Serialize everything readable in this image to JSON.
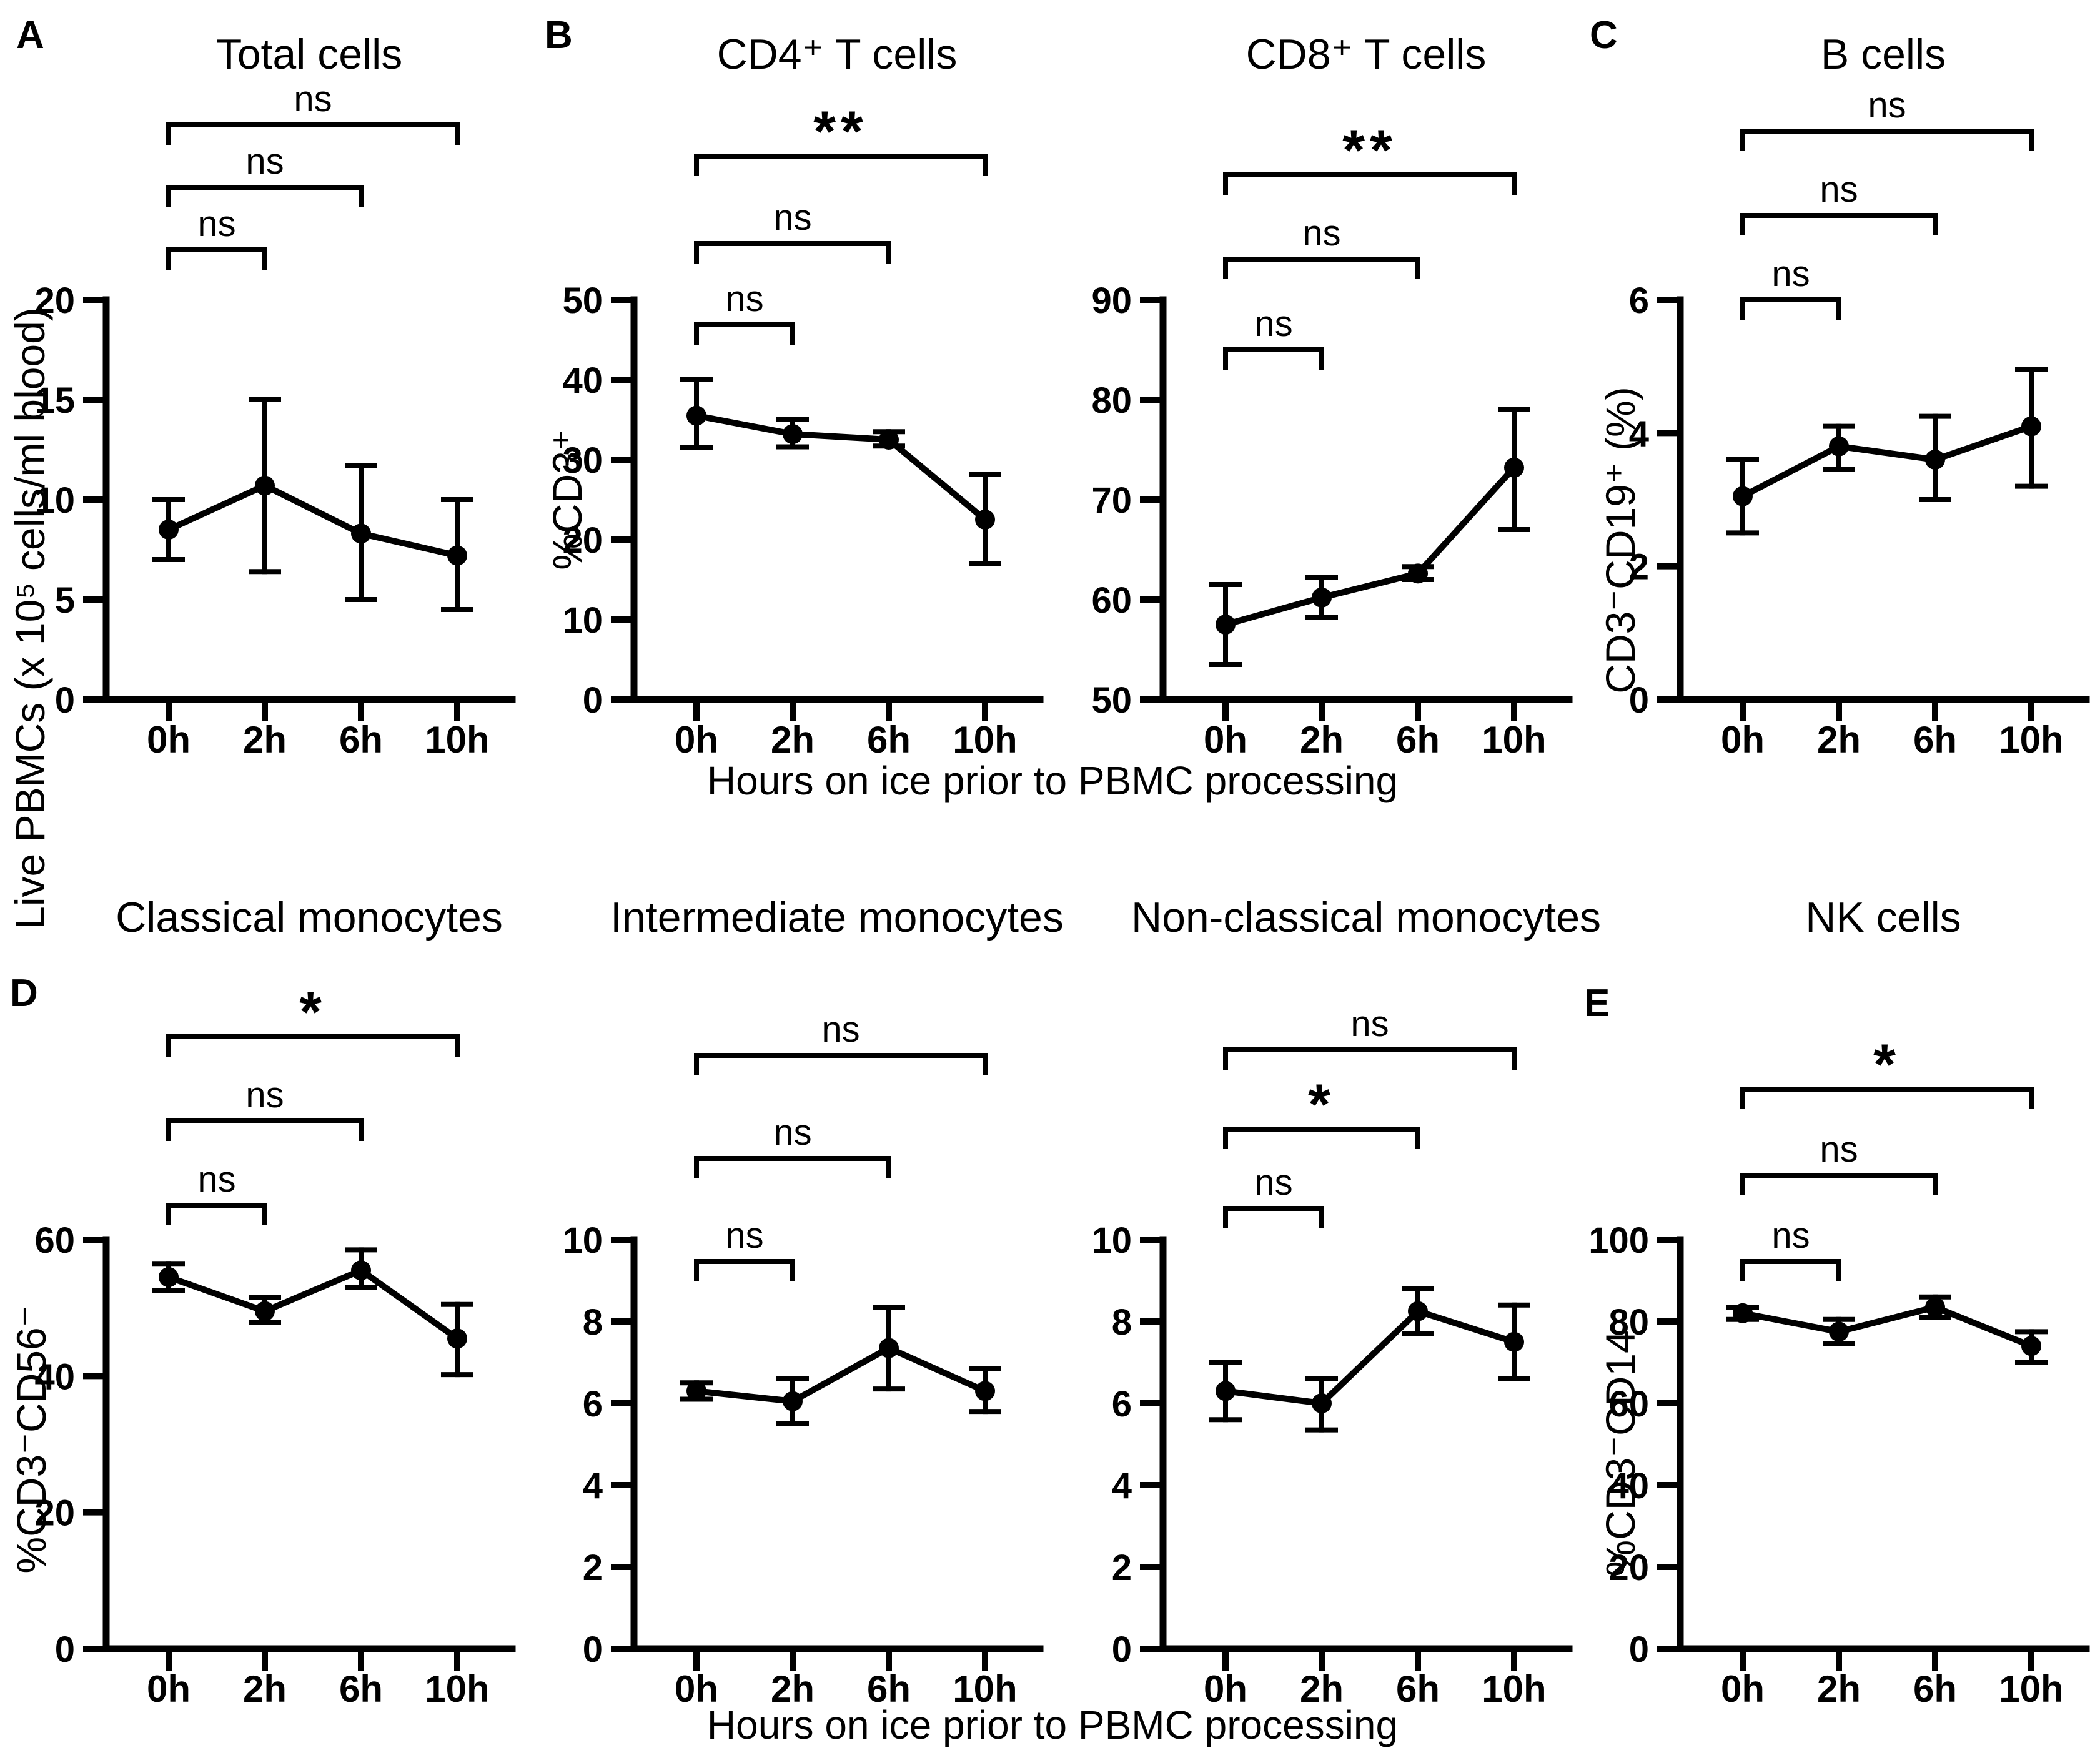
{
  "figure": {
    "panel_letters": [
      "A",
      "B",
      "C",
      "D",
      "E"
    ],
    "xaxis_label_row1": "Hours on ice prior to PBMC processing",
    "xaxis_label_row2": "Hours on ice prior to PBMC processing",
    "colors": {
      "ink": "#000000",
      "background": "#ffffff"
    }
  },
  "chart_data": [
    {
      "type": "line",
      "panel_letter": "A",
      "title": "Total cells",
      "ylabel": "Live PBMCs (x 10⁵ cells/ml blood)",
      "categories": [
        "0h",
        "2h",
        "6h",
        "10h"
      ],
      "values": [
        8.5,
        10.7,
        8.3,
        7.2
      ],
      "err_low": [
        7.0,
        6.4,
        5.0,
        4.5
      ],
      "err_high": [
        10.0,
        15.0,
        11.7,
        10.0
      ],
      "ylim": [
        0,
        20
      ],
      "yticks": [
        0,
        5,
        10,
        15,
        20
      ],
      "marker": "filled-circle",
      "significance": [
        {
          "comparison": "0h vs 2h",
          "label": "ns"
        },
        {
          "comparison": "0h vs 6h",
          "label": "ns"
        },
        {
          "comparison": "0h vs 10h",
          "label": "ns"
        }
      ]
    },
    {
      "type": "line",
      "panel_letter": "B",
      "title": "CD4⁺ T cells",
      "ylabel": "%CD3⁺",
      "categories": [
        "0h",
        "2h",
        "6h",
        "10h"
      ],
      "values": [
        35.5,
        33.2,
        32.5,
        22.5
      ],
      "err_low": [
        31.5,
        31.6,
        31.7,
        17.0
      ],
      "err_high": [
        40.0,
        35.0,
        33.5,
        28.2
      ],
      "ylim": [
        0,
        50
      ],
      "yticks": [
        0,
        10,
        20,
        30,
        40,
        50
      ],
      "marker": "filled-circle",
      "significance": [
        {
          "comparison": "0h vs 2h",
          "label": "ns"
        },
        {
          "comparison": "0h vs 6h",
          "label": "ns"
        },
        {
          "comparison": "0h vs 10h",
          "label": "**"
        }
      ]
    },
    {
      "type": "line",
      "panel_letter": "",
      "title": "CD8⁺ T cells",
      "ylabel": "",
      "categories": [
        "0h",
        "2h",
        "6h",
        "10h"
      ],
      "values": [
        57.5,
        60.2,
        62.6,
        73.2
      ],
      "err_low": [
        53.5,
        58.2,
        62.0,
        67.0
      ],
      "err_high": [
        61.5,
        62.2,
        63.3,
        79.0
      ],
      "ylim": [
        50,
        90
      ],
      "yticks": [
        50,
        60,
        70,
        80,
        90
      ],
      "marker": "filled-circle",
      "significance": [
        {
          "comparison": "0h vs 2h",
          "label": "ns"
        },
        {
          "comparison": "0h vs 6h",
          "label": "ns"
        },
        {
          "comparison": "0h vs 10h",
          "label": "**"
        }
      ]
    },
    {
      "type": "line",
      "panel_letter": "C",
      "title": "B cells",
      "ylabel": "CD3⁻CD19⁺ (%)",
      "categories": [
        "0h",
        "2h",
        "6h",
        "10h"
      ],
      "values": [
        3.05,
        3.8,
        3.6,
        4.1
      ],
      "err_low": [
        2.5,
        3.45,
        3.0,
        3.2
      ],
      "err_high": [
        3.6,
        4.1,
        4.25,
        4.95
      ],
      "ylim": [
        0,
        6
      ],
      "yticks": [
        0,
        2,
        4,
        6
      ],
      "marker": "filled-circle",
      "significance": [
        {
          "comparison": "0h vs 2h",
          "label": "ns"
        },
        {
          "comparison": "0h vs 6h",
          "label": "ns"
        },
        {
          "comparison": "0h vs 10h",
          "label": "ns"
        }
      ]
    },
    {
      "type": "line",
      "panel_letter": "D",
      "title": "Classical monocytes",
      "ylabel": "%CD3⁻CD56⁻",
      "categories": [
        "0h",
        "2h",
        "6h",
        "10h"
      ],
      "values": [
        54.5,
        49.5,
        55.5,
        45.5
      ],
      "err_low": [
        52.5,
        47.9,
        53.0,
        40.2
      ],
      "err_high": [
        56.5,
        51.5,
        58.5,
        50.5
      ],
      "ylim": [
        0,
        60
      ],
      "yticks": [
        0,
        20,
        40,
        60
      ],
      "marker": "filled-circle",
      "significance": [
        {
          "comparison": "0h vs 2h",
          "label": "ns"
        },
        {
          "comparison": "0h vs 6h",
          "label": "ns"
        },
        {
          "comparison": "0h vs 10h",
          "label": "*"
        }
      ]
    },
    {
      "type": "line",
      "panel_letter": "",
      "title": "Intermediate monocytes",
      "ylabel": "",
      "categories": [
        "0h",
        "2h",
        "6h",
        "10h"
      ],
      "values": [
        6.3,
        6.05,
        7.35,
        6.3
      ],
      "err_low": [
        6.1,
        5.5,
        6.35,
        5.8
      ],
      "err_high": [
        6.5,
        6.6,
        8.35,
        6.85
      ],
      "ylim": [
        0,
        10
      ],
      "yticks": [
        0,
        2,
        4,
        6,
        8,
        10
      ],
      "marker": "filled-circle",
      "significance": [
        {
          "comparison": "0h vs 2h",
          "label": "ns"
        },
        {
          "comparison": "0h vs 6h",
          "label": "ns"
        },
        {
          "comparison": "0h vs 10h",
          "label": "ns"
        }
      ]
    },
    {
      "type": "line",
      "panel_letter": "",
      "title": "Non-classical monocytes",
      "ylabel": "",
      "categories": [
        "0h",
        "2h",
        "6h",
        "10h"
      ],
      "values": [
        6.3,
        6.0,
        8.25,
        7.5
      ],
      "err_low": [
        5.6,
        5.35,
        7.7,
        6.6
      ],
      "err_high": [
        7.0,
        6.6,
        8.8,
        8.4
      ],
      "ylim": [
        0,
        10
      ],
      "yticks": [
        0,
        2,
        4,
        6,
        8,
        10
      ],
      "marker": "filled-circle",
      "significance": [
        {
          "comparison": "0h vs 2h",
          "label": "ns"
        },
        {
          "comparison": "0h vs 6h",
          "label": "*"
        },
        {
          "comparison": "0h vs 10h",
          "label": "ns"
        }
      ]
    },
    {
      "type": "line",
      "panel_letter": "E",
      "title": "NK cells",
      "ylabel": "%CD3⁻CD14⁻",
      "categories": [
        "0h",
        "2h",
        "6h",
        "10h"
      ],
      "values": [
        82.0,
        77.5,
        83.5,
        74.0
      ],
      "err_low": [
        80.5,
        74.5,
        81.0,
        70.0
      ],
      "err_high": [
        83.5,
        80.5,
        86.0,
        77.5
      ],
      "ylim": [
        0,
        100
      ],
      "yticks": [
        0,
        20,
        40,
        60,
        80,
        100
      ],
      "marker": "filled-circle",
      "significance": [
        {
          "comparison": "0h vs 2h",
          "label": "ns"
        },
        {
          "comparison": "0h vs 6h",
          "label": "ns"
        },
        {
          "comparison": "0h vs 10h",
          "label": "*"
        }
      ]
    }
  ]
}
